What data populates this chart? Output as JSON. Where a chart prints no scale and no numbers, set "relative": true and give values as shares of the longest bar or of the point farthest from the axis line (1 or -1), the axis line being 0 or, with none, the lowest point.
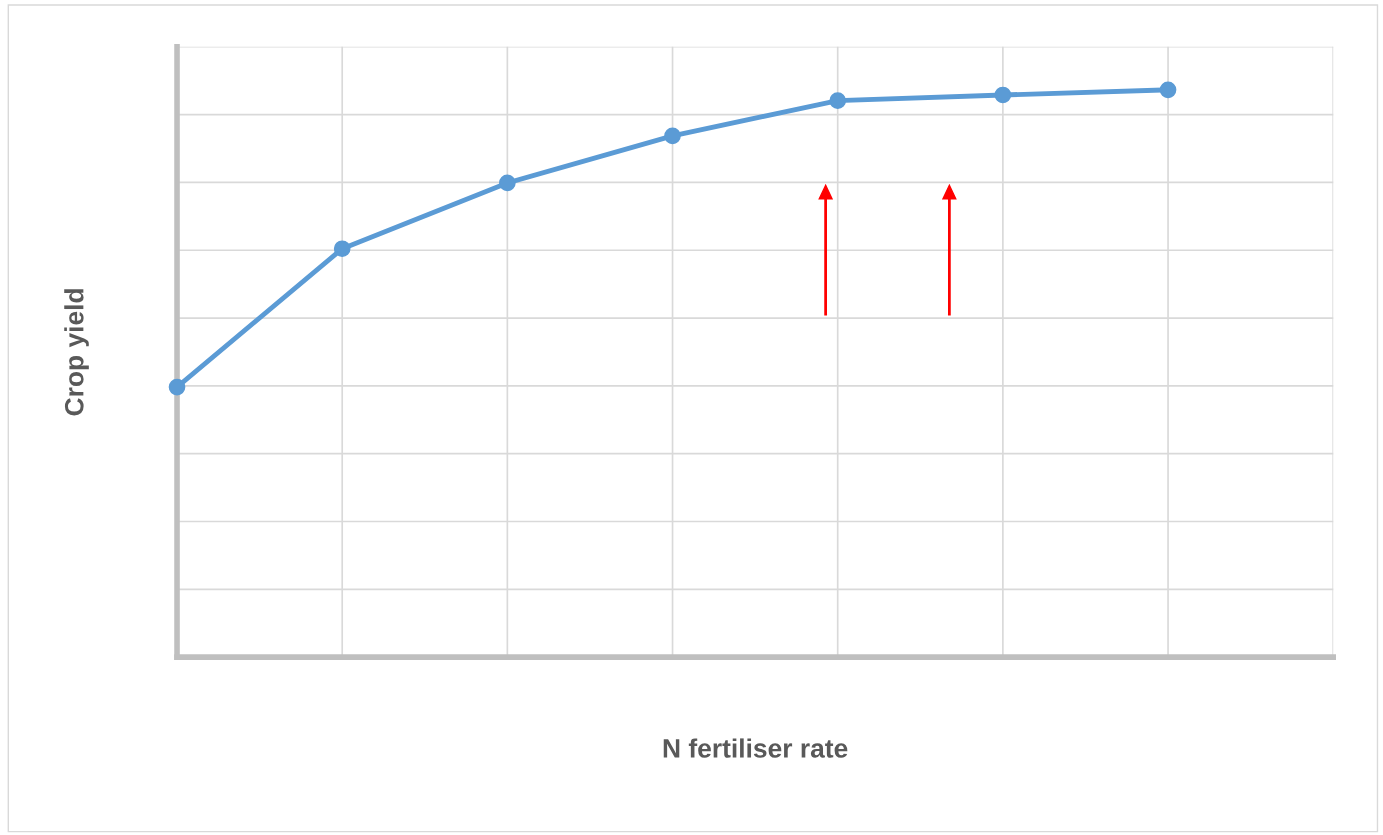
{
  "chart_data": {
    "type": "line",
    "relative": true,
    "xlabel": "N fertiliser rate",
    "ylabel": "Crop yield",
    "categories": [
      null,
      null,
      null,
      null,
      null,
      null,
      null
    ],
    "series": [
      {
        "color": "#5b9bd5",
        "values": [
          0.476,
          0.72,
          0.836,
          0.919,
          0.981,
          0.991,
          1.0
        ]
      }
    ],
    "marker": "circle",
    "line_style": "solid",
    "grid": true,
    "tick_labels": false
  }
}
